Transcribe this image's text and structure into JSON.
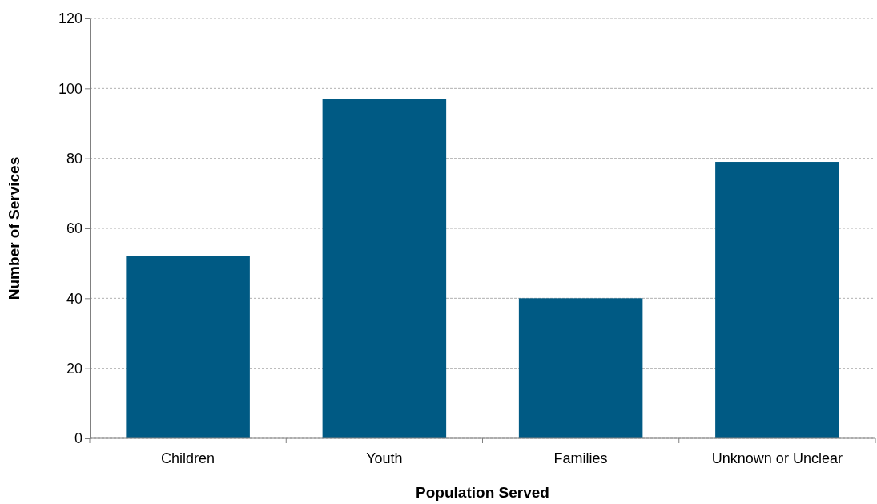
{
  "chart_data": {
    "type": "bar",
    "xlabel": "Population Served",
    "ylabel": "Number of Services",
    "categories": [
      "Children",
      "Youth",
      "Families",
      "Unknown or Unclear"
    ],
    "values": [
      52,
      97,
      40,
      79
    ],
    "color": "#005a84",
    "ylim": [
      0,
      120
    ],
    "yticks": [
      0,
      20,
      40,
      60,
      80,
      100,
      120
    ],
    "grid": "y"
  }
}
